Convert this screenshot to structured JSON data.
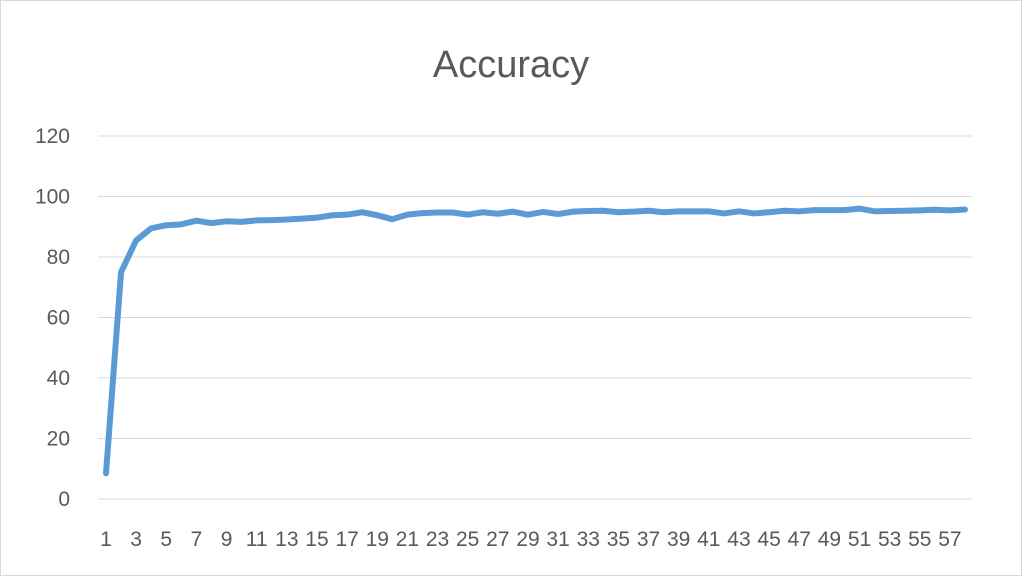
{
  "chart_data": {
    "type": "line",
    "title": "Accuracy",
    "xlabel": "",
    "ylabel": "",
    "ylim": [
      0,
      120
    ],
    "yticks": [
      0,
      20,
      40,
      60,
      80,
      100,
      120
    ],
    "grid": true,
    "legend": "none",
    "x": [
      1,
      2,
      3,
      4,
      5,
      6,
      7,
      8,
      9,
      10,
      11,
      12,
      13,
      14,
      15,
      16,
      17,
      18,
      19,
      20,
      21,
      22,
      23,
      24,
      25,
      26,
      27,
      28,
      29,
      30,
      31,
      32,
      33,
      34,
      35,
      36,
      37,
      38,
      39,
      40,
      41,
      42,
      43,
      44,
      45,
      46,
      47,
      48,
      49,
      50,
      51,
      52,
      53,
      54,
      55,
      56,
      57,
      58
    ],
    "series": [
      {
        "color": "#5b9bd5",
        "values": [
          8.5,
          75,
          85.5,
          89.5,
          90.5,
          90.8,
          92,
          91.2,
          91.8,
          91.6,
          92.1,
          92.2,
          92.4,
          92.7,
          93,
          93.8,
          94,
          94.8,
          93.8,
          92.5,
          94,
          94.5,
          94.7,
          94.7,
          94,
          94.8,
          94.3,
          95,
          94,
          94.9,
          94.2,
          95,
          95.2,
          95.3,
          94.8,
          95,
          95.3,
          94.8,
          95.1,
          95.1,
          95.1,
          94.4,
          95.1,
          94.4,
          94.8,
          95.3,
          95.1,
          95.5,
          95.5,
          95.5,
          96,
          95.1,
          95.2,
          95.3,
          95.4,
          95.6,
          95.4,
          95.7
        ]
      }
    ],
    "xtick_labels": [
      "1",
      "3",
      "5",
      "7",
      "9",
      "11",
      "13",
      "15",
      "17",
      "19",
      "21",
      "23",
      "25",
      "27",
      "29",
      "31",
      "33",
      "35",
      "37",
      "39",
      "41",
      "43",
      "45",
      "47",
      "49",
      "51",
      "53",
      "55",
      "57"
    ]
  }
}
